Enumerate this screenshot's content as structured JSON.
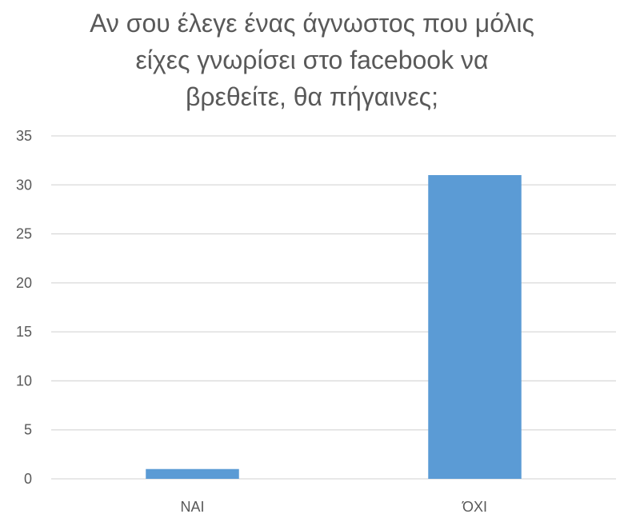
{
  "chart_data": {
    "type": "bar",
    "title_lines": [
      "Αν σου έλεγε ένας άγνωστος που μόλις",
      "είχες γνωρίσει στο facebook να",
      "βρεθείτε, θα πήγαινες;"
    ],
    "title": "Αν σου έλεγε ένας άγνωστος που μόλις είχες γνωρίσει στο facebook να βρεθείτε, θα πήγαινες;",
    "categories": [
      "ΝΑΙ",
      "ΌΧΙ"
    ],
    "values": [
      1,
      31
    ],
    "ylim": [
      0,
      35
    ],
    "yticks": [
      0,
      5,
      10,
      15,
      20,
      25,
      30,
      35
    ],
    "xlabel": "",
    "ylabel": "",
    "grid": true,
    "bar_color": "#5b9bd5",
    "grid_color": "#d9d9d9",
    "text_color": "#595959"
  }
}
